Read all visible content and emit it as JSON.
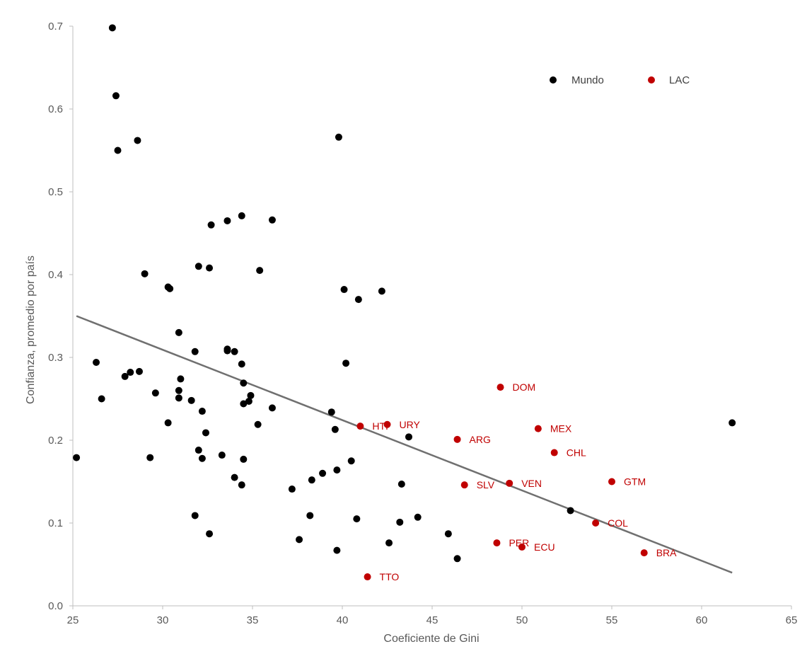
{
  "chart_data": {
    "type": "scatter",
    "xlabel": "Coeficiente de Gini",
    "ylabel": "Confianza, promedio por país",
    "xlim": [
      25,
      65
    ],
    "ylim": [
      0,
      0.7
    ],
    "xticks": [
      "25",
      "30",
      "35",
      "40",
      "45",
      "50",
      "55",
      "60",
      "65"
    ],
    "yticks": [
      "0.0",
      "0.1",
      "0.2",
      "0.3",
      "0.4",
      "0.5",
      "0.6",
      "0.7"
    ],
    "legend_position": "top-right",
    "colors": {
      "mundo": "#000000",
      "lac": "#C00000",
      "trend": "#707070",
      "axis": "#BFBFBF"
    },
    "series": [
      {
        "name": "Mundo",
        "points": [
          [
            25.2,
            0.179
          ],
          [
            26.3,
            0.294
          ],
          [
            26.6,
            0.25
          ],
          [
            27.2,
            0.698
          ],
          [
            27.4,
            0.616
          ],
          [
            27.5,
            0.55
          ],
          [
            27.9,
            0.277
          ],
          [
            28.2,
            0.282
          ],
          [
            28.6,
            0.562
          ],
          [
            28.7,
            0.283
          ],
          [
            29.0,
            0.401
          ],
          [
            29.3,
            0.179
          ],
          [
            29.6,
            0.257
          ],
          [
            30.3,
            0.385
          ],
          [
            30.3,
            0.221
          ],
          [
            30.4,
            0.383
          ],
          [
            30.9,
            0.33
          ],
          [
            30.9,
            0.251
          ],
          [
            30.9,
            0.26
          ],
          [
            31.0,
            0.274
          ],
          [
            31.6,
            0.248
          ],
          [
            31.8,
            0.307
          ],
          [
            31.8,
            0.109
          ],
          [
            32.0,
            0.41
          ],
          [
            32.0,
            0.188
          ],
          [
            32.2,
            0.178
          ],
          [
            32.2,
            0.235
          ],
          [
            32.4,
            0.209
          ],
          [
            32.6,
            0.087
          ],
          [
            32.6,
            0.408
          ],
          [
            32.7,
            0.46
          ],
          [
            33.3,
            0.182
          ],
          [
            33.6,
            0.465
          ],
          [
            33.6,
            0.31
          ],
          [
            33.6,
            0.308
          ],
          [
            34.0,
            0.307
          ],
          [
            34.0,
            0.155
          ],
          [
            34.4,
            0.471
          ],
          [
            34.4,
            0.292
          ],
          [
            34.4,
            0.146
          ],
          [
            34.5,
            0.244
          ],
          [
            34.5,
            0.269
          ],
          [
            34.5,
            0.177
          ],
          [
            34.8,
            0.247
          ],
          [
            34.9,
            0.254
          ],
          [
            35.3,
            0.219
          ],
          [
            35.4,
            0.405
          ],
          [
            36.1,
            0.466
          ],
          [
            36.1,
            0.239
          ],
          [
            37.2,
            0.141
          ],
          [
            37.6,
            0.08
          ],
          [
            38.2,
            0.109
          ],
          [
            38.3,
            0.152
          ],
          [
            38.9,
            0.16
          ],
          [
            39.4,
            0.234
          ],
          [
            39.6,
            0.213
          ],
          [
            39.7,
            0.164
          ],
          [
            39.7,
            0.067
          ],
          [
            39.8,
            0.566
          ],
          [
            40.1,
            0.382
          ],
          [
            40.2,
            0.293
          ],
          [
            40.5,
            0.175
          ],
          [
            40.8,
            0.105
          ],
          [
            40.9,
            0.37
          ],
          [
            42.2,
            0.38
          ],
          [
            42.6,
            0.076
          ],
          [
            43.2,
            0.101
          ],
          [
            43.3,
            0.147
          ],
          [
            43.7,
            0.204
          ],
          [
            44.2,
            0.107
          ],
          [
            45.9,
            0.087
          ],
          [
            46.4,
            0.057
          ],
          [
            52.7,
            0.115
          ],
          [
            61.7,
            0.221
          ]
        ]
      },
      {
        "name": "LAC",
        "points": [
          {
            "x": 41.0,
            "y": 0.217,
            "label": "HTI"
          },
          {
            "x": 42.5,
            "y": 0.219,
            "label": "URY"
          },
          {
            "x": 48.8,
            "y": 0.264,
            "label": "DOM"
          },
          {
            "x": 50.9,
            "y": 0.214,
            "label": "MEX"
          },
          {
            "x": 46.4,
            "y": 0.201,
            "label": "ARG"
          },
          {
            "x": 51.8,
            "y": 0.185,
            "label": "CHL"
          },
          {
            "x": 46.8,
            "y": 0.146,
            "label": "SLV"
          },
          {
            "x": 49.3,
            "y": 0.148,
            "label": "VEN"
          },
          {
            "x": 55.0,
            "y": 0.15,
            "label": "GTM"
          },
          {
            "x": 54.1,
            "y": 0.1,
            "label": "COL"
          },
          {
            "x": 48.6,
            "y": 0.076,
            "label": "PER"
          },
          {
            "x": 50.0,
            "y": 0.071,
            "label": "ECU"
          },
          {
            "x": 56.8,
            "y": 0.064,
            "label": "BRA"
          },
          {
            "x": 41.4,
            "y": 0.035,
            "label": "TTO"
          }
        ]
      }
    ],
    "trendline": {
      "x": [
        25.2,
        61.7
      ],
      "y": [
        0.35,
        0.04
      ]
    }
  }
}
